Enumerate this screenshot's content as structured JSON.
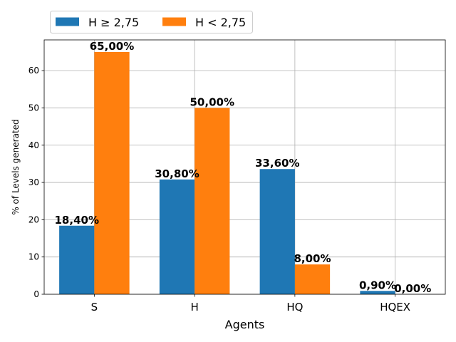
{
  "chart_data": {
    "type": "bar",
    "categories": [
      "S",
      "H",
      "HQ",
      "HQEX"
    ],
    "series": [
      {
        "name": "H ≥ 2,75",
        "values": [
          18.4,
          30.8,
          33.6,
          0.9
        ],
        "labels": [
          "18,40%",
          "30,80%",
          "33,60%",
          "0,90%"
        ],
        "color": "#1f77b4"
      },
      {
        "name": "H < 2,75",
        "values": [
          65.0,
          50.0,
          8.0,
          0.0
        ],
        "labels": [
          "65,00%",
          "50,00%",
          "8,00%",
          "0,00%"
        ],
        "color": "#ff7f0e"
      }
    ],
    "xlabel": "Agents",
    "ylabel": "% of Levels generated",
    "ylim": [
      0,
      68.25
    ],
    "yticks": [
      0,
      10,
      20,
      30,
      40,
      50,
      60
    ],
    "grid": true,
    "legend_position": "top, above plot"
  }
}
